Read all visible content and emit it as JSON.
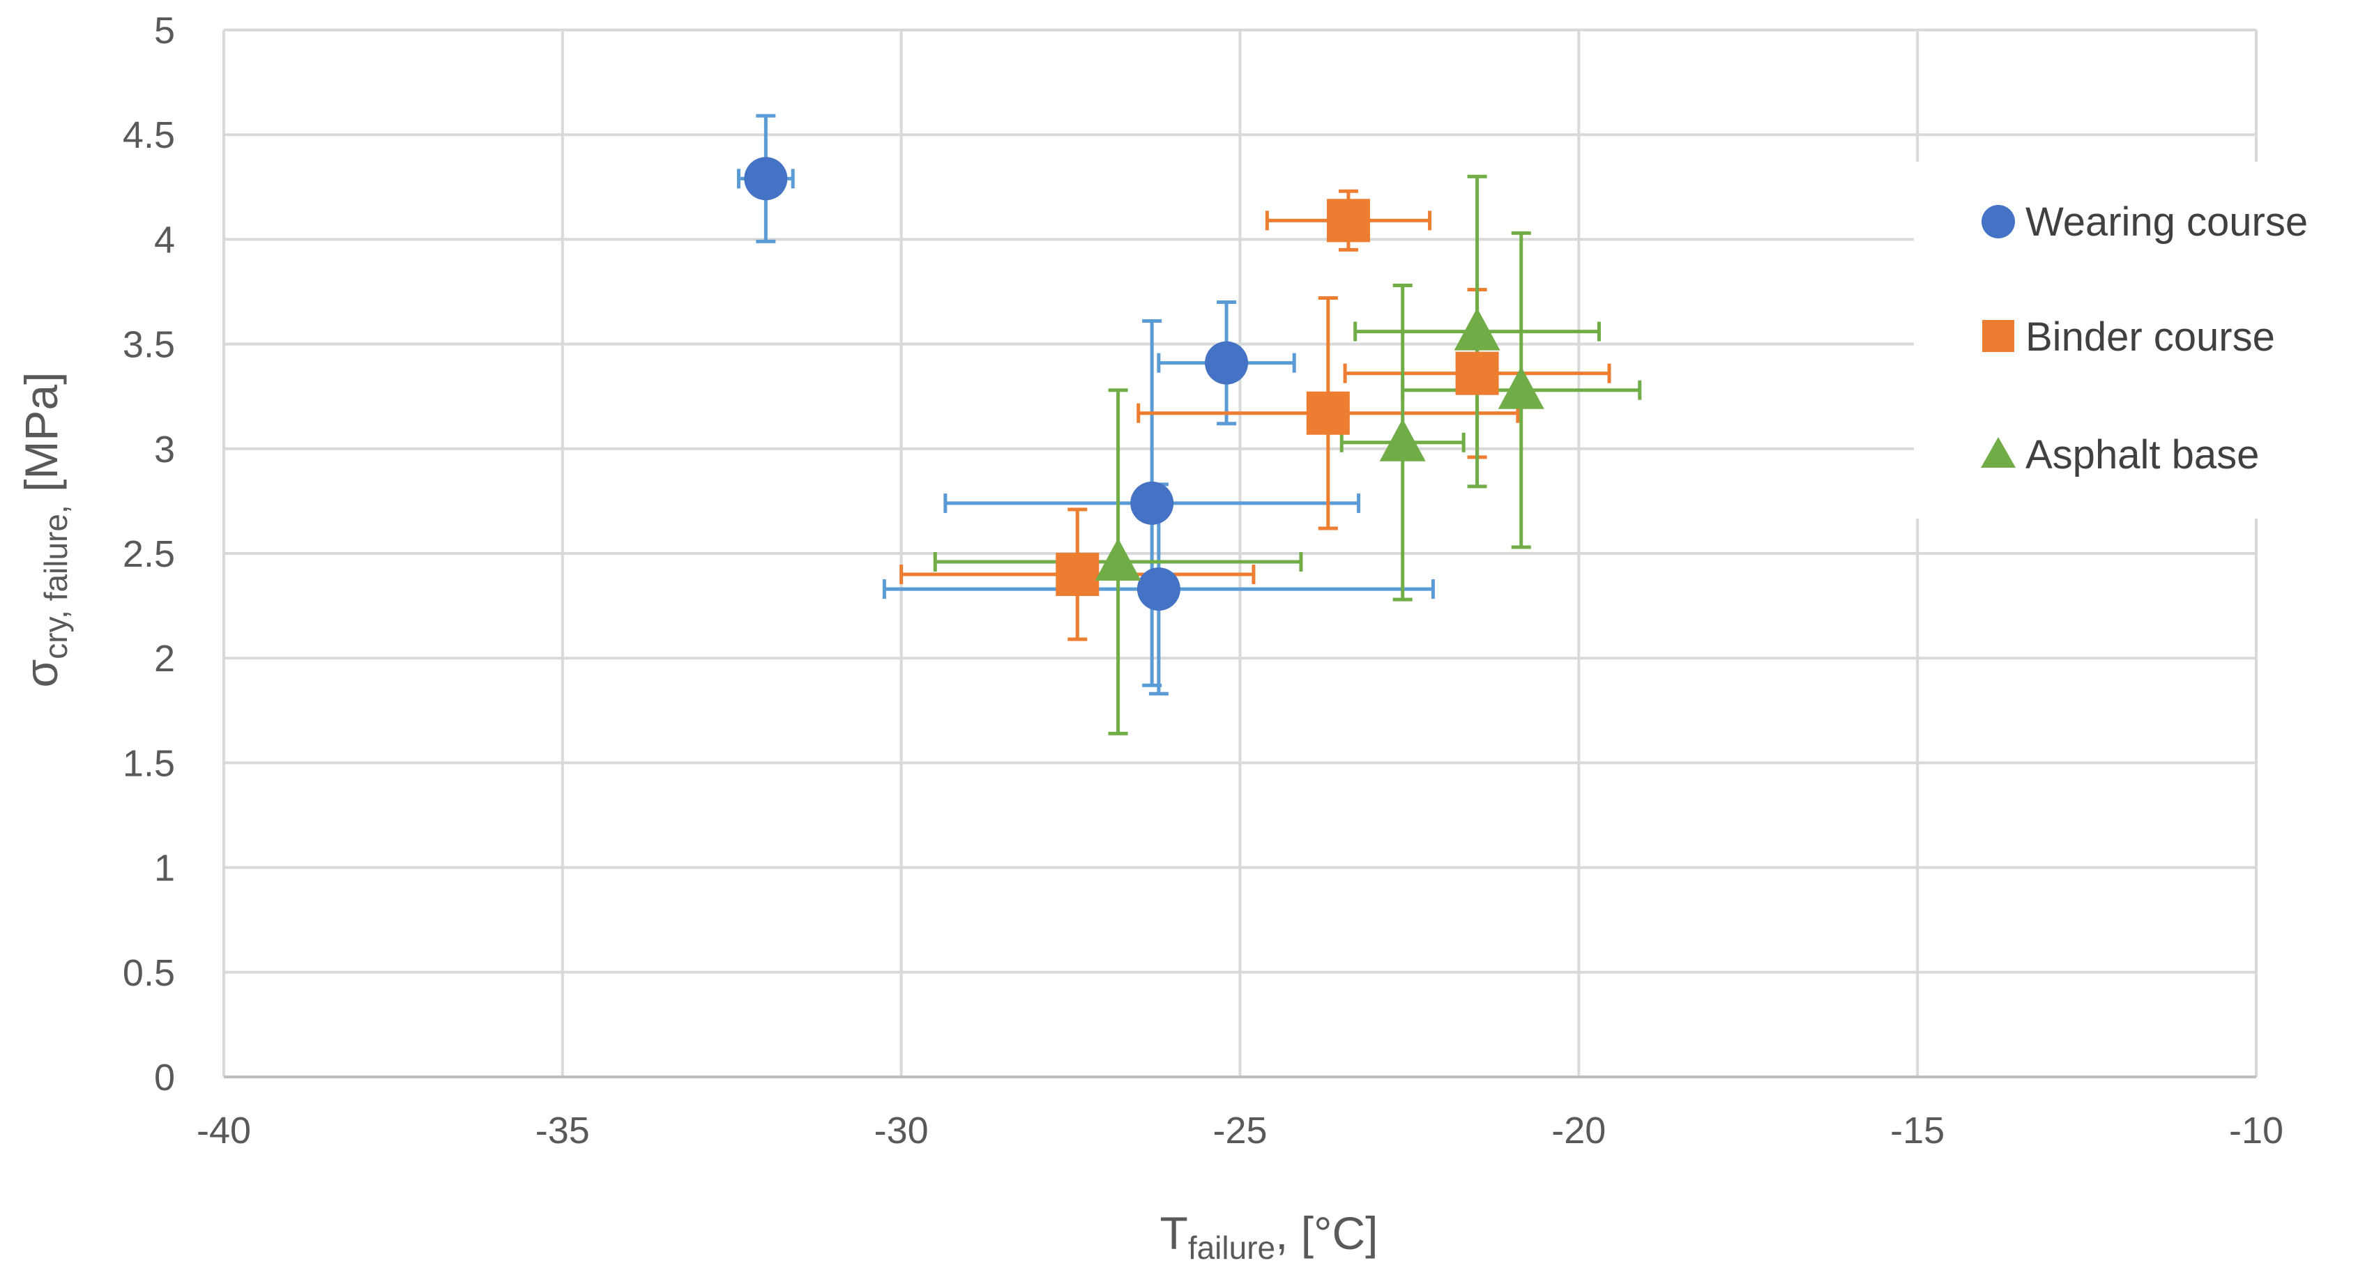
{
  "chart_data": {
    "type": "scatter",
    "title": "",
    "xlabel": {
      "main": "T",
      "sub": "failure",
      "unit": ", [°C]"
    },
    "ylabel": {
      "main": "σ",
      "sub": "cry, failure,",
      "unit": " [MPa]"
    },
    "xlim": [
      -40,
      -10
    ],
    "ylim": [
      0,
      5
    ],
    "xticks": [
      -40,
      -35,
      -30,
      -25,
      -20,
      -15,
      -10
    ],
    "yticks": [
      0,
      0.5,
      1,
      1.5,
      2,
      2.5,
      3,
      3.5,
      4,
      4.5,
      5
    ],
    "xtick_labels": [
      "-40",
      "-35",
      "-30",
      "-25",
      "-20",
      "-15",
      "-10"
    ],
    "ytick_labels": [
      "0",
      "0.5",
      "1",
      "1.5",
      "2",
      "2.5",
      "3",
      "3.5",
      "4",
      "4.5",
      "5"
    ],
    "grid": true,
    "legend_position": "right",
    "series": [
      {
        "name": "Wearing course",
        "marker": "circle",
        "color": "#4472C4",
        "error_color": "#5B9BD5",
        "points": [
          {
            "x": -32.0,
            "y": 4.29,
            "xerr": 0.4,
            "yerr": 0.3
          },
          {
            "x": -25.2,
            "y": 3.41,
            "xerr": 1.0,
            "yerr": 0.29
          },
          {
            "x": -26.3,
            "y": 2.74,
            "xerr": 3.05,
            "yerr": 0.87
          },
          {
            "x": -26.2,
            "y": 2.33,
            "xerr": 4.05,
            "yerr": 0.5
          }
        ]
      },
      {
        "name": "Binder course",
        "marker": "square",
        "color": "#ED7D31",
        "error_color": "#ED7D31",
        "points": [
          {
            "x": -23.4,
            "y": 4.09,
            "xerr": 1.2,
            "yerr": 0.14
          },
          {
            "x": -23.7,
            "y": 3.17,
            "xerr": 2.8,
            "yerr": 0.55
          },
          {
            "x": -21.5,
            "y": 3.36,
            "xerr": 1.95,
            "yerr": 0.4
          },
          {
            "x": -27.4,
            "y": 2.4,
            "xerr": 2.6,
            "yerr": 0.31
          }
        ]
      },
      {
        "name": "Asphalt base",
        "marker": "triangle",
        "color": "#70AD47",
        "error_color": "#70AD47",
        "points": [
          {
            "x": -21.5,
            "y": 3.56,
            "xerr": 1.8,
            "yerr": 0.74
          },
          {
            "x": -20.85,
            "y": 3.28,
            "xerr": 1.75,
            "yerr": 0.75
          },
          {
            "x": -22.6,
            "y": 3.03,
            "xerr": 0.9,
            "yerr": 0.75
          },
          {
            "x": -26.8,
            "y": 2.46,
            "xerr": 2.7,
            "yerr": 0.82
          }
        ]
      }
    ]
  }
}
